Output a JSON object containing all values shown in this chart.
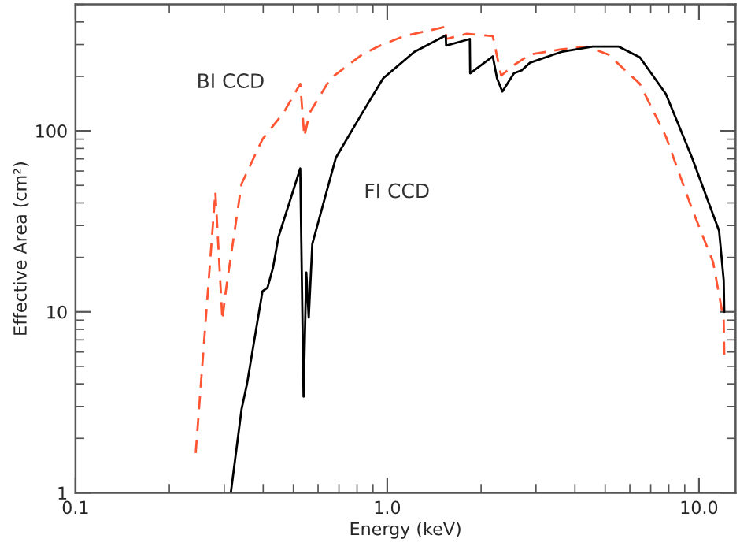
{
  "chart_data": {
    "type": "line",
    "xlabel": "Energy (keV)",
    "ylabel": "Effective Area (cm²)",
    "log": "xy",
    "xlim": [
      0.1,
      13.1
    ],
    "ylim": [
      1,
      500
    ],
    "xticks": [
      {
        "value": 0.1,
        "label": "0.1"
      },
      {
        "value": 1,
        "label": "1.0"
      },
      {
        "value": 10,
        "label": "10.0"
      }
    ],
    "yticks": [
      1,
      10,
      100
    ],
    "grid": false,
    "marker": "none",
    "series": [
      {
        "name": "BI CCD",
        "color": "#ff5533",
        "line_style": "dashed",
        "x": [
          0.243,
          0.281,
          0.296,
          0.301,
          0.306,
          0.341,
          0.398,
          0.465,
          0.526,
          0.542,
          0.564,
          0.658,
          0.83,
          0.933,
          1.13,
          1.54,
          1.545,
          1.8,
          2.18,
          2.32,
          2.55,
          2.87,
          3.61,
          4.38,
          5.12,
          6.46,
          7.83,
          9.5,
          11.1,
          12.0,
          12.05
        ],
        "values": [
          1.66,
          46,
          9.0,
          11.7,
          14.4,
          51,
          90,
          126,
          182,
          93,
          126,
          195,
          264,
          292,
          334,
          376,
          322,
          344,
          334,
          202,
          231,
          264,
          282,
          292,
          264,
          182,
          93,
          37,
          18.8,
          9.0,
          5.8
        ]
      },
      {
        "name": "FI CCD",
        "color": "#000000",
        "line_style": "solid",
        "x": [
          0.315,
          0.341,
          0.355,
          0.398,
          0.413,
          0.43,
          0.448,
          0.526,
          0.539,
          0.55,
          0.56,
          0.575,
          0.684,
          0.83,
          0.97,
          1.22,
          1.54,
          1.545,
          1.84,
          1.845,
          2.18,
          2.25,
          2.34,
          2.55,
          2.7,
          2.87,
          3.61,
          4.56,
          5.53,
          6.46,
          7.83,
          9.5,
          11.6,
          12.0,
          12.05
        ],
        "values": [
          1,
          2.9,
          4.0,
          13,
          13.6,
          17.5,
          26,
          62,
          3.4,
          16.5,
          9.3,
          23.7,
          71,
          125,
          195,
          273,
          337,
          296,
          322,
          208,
          258,
          195,
          165,
          208,
          216,
          238,
          273,
          292,
          292,
          255,
          160,
          71,
          28,
          15,
          10
        ]
      }
    ]
  }
}
